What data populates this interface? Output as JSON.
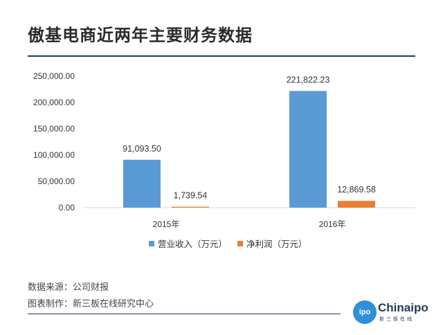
{
  "title": "傲基电商近两年主要财务数据",
  "chart_data": {
    "type": "bar",
    "categories": [
      "2015年",
      "2016年"
    ],
    "series": [
      {
        "name": "营业收入（万元）",
        "values": [
          91093.5,
          221822.23
        ],
        "labels": [
          "91,093.50",
          "221,822.23"
        ],
        "color": "#5b9bd5"
      },
      {
        "name": "净利润（万元）",
        "values": [
          1739.54,
          12869.58
        ],
        "labels": [
          "1,739.54",
          "12,869.58"
        ],
        "color": "#ed7d31"
      }
    ],
    "ylim": [
      0,
      250000
    ],
    "yticks": [
      "0.00",
      "50,000.00",
      "100,000.00",
      "150,000.00",
      "200,000.00",
      "250,000.00"
    ],
    "legend_position": "bottom",
    "grid": false
  },
  "source": {
    "data_source": "数据来源：公司财报",
    "made_by": "图表制作：新三板在线研究中心"
  },
  "logo": {
    "circle_text": "ipo",
    "brand": "Chinaipo",
    "sub": "新三板在线"
  }
}
